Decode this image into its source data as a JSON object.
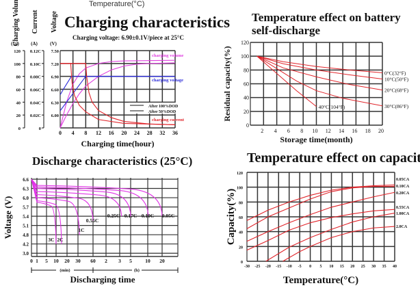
{
  "header": {
    "top_label": "Temperature(°C)"
  },
  "colors": {
    "grid": "#111111",
    "red": "#e0242a",
    "magenta": "#e040e0",
    "blue": "#2a2ad8",
    "discharge": "#e033e6"
  },
  "chart_data": [
    {
      "type": "line",
      "title": "Charging characteristics",
      "subtitle": "Charging voltage: 6.90±0.1V/piece at 25°C",
      "xlabel": "Charging time(hour)",
      "xticks": [
        0,
        4,
        8,
        12,
        16,
        20,
        24,
        28,
        32,
        36
      ],
      "xlim": [
        0,
        36
      ],
      "grid": true,
      "axes": [
        {
          "label": "Charging Volume",
          "unit": "(%)",
          "ticks": [
            "120",
            "100",
            "80",
            "60",
            "40",
            "20",
            "0"
          ]
        },
        {
          "label": "Current",
          "unit": "(A)",
          "ticks": [
            "0.12C",
            "0.10C",
            "0.08C",
            "0.06C",
            "0.04C",
            "0.02C",
            "0"
          ]
        },
        {
          "label": "Voltage",
          "unit": "(V)",
          "ticks": [
            "7.50",
            "7.20",
            "6.90",
            "6.60",
            "6.30",
            "6.00",
            ""
          ]
        }
      ],
      "legend": [
        "After 100%DOD",
        "After 50%DOD"
      ],
      "series_labels": {
        "volume": "charging volume",
        "voltage": "charging voltage",
        "current": "charging current"
      },
      "series": [
        {
          "kind": "volume",
          "dod": "100%",
          "unit": "%",
          "points": [
            [
              0,
              0
            ],
            [
              2,
              20
            ],
            [
              4,
              38
            ],
            [
              6,
              53
            ],
            [
              8,
              65
            ],
            [
              12,
              80
            ],
            [
              16,
              90
            ],
            [
              20,
              96
            ],
            [
              24,
              99
            ],
            [
              28,
              100
            ],
            [
              36,
              101
            ]
          ]
        },
        {
          "kind": "volume",
          "dod": "50%",
          "unit": "%",
          "points": [
            [
              0,
              0
            ],
            [
              2,
              40
            ],
            [
              4,
              68
            ],
            [
              6,
              84
            ],
            [
              8,
              93
            ],
            [
              12,
              100
            ],
            [
              16,
              103
            ],
            [
              20,
              104
            ],
            [
              36,
              105
            ]
          ]
        },
        {
          "kind": "voltage",
          "dod": "100%",
          "unit": "V",
          "points": [
            [
              0,
              6.1
            ],
            [
              2,
              6.3
            ],
            [
              4,
              6.5
            ],
            [
              6,
              6.7
            ],
            [
              8,
              6.9
            ],
            [
              36,
              6.9
            ]
          ]
        },
        {
          "kind": "voltage",
          "dod": "50%",
          "unit": "V",
          "points": [
            [
              0,
              6.47
            ],
            [
              1,
              6.6
            ],
            [
              2,
              6.72
            ],
            [
              3.5,
              6.9
            ],
            [
              36,
              6.9
            ]
          ]
        },
        {
          "kind": "current",
          "dod": "100%",
          "unit": "C",
          "points": [
            [
              0,
              0.1
            ],
            [
              8,
              0.1
            ],
            [
              8.3,
              0.08
            ],
            [
              9,
              0.055
            ],
            [
              10,
              0.04
            ],
            [
              12,
              0.027
            ],
            [
              16,
              0.016
            ],
            [
              20,
              0.01
            ],
            [
              28,
              0.006
            ],
            [
              36,
              0.005
            ]
          ]
        },
        {
          "kind": "current",
          "dod": "50%",
          "unit": "C",
          "points": [
            [
              0,
              0.1
            ],
            [
              3.3,
              0.1
            ],
            [
              3.7,
              0.07
            ],
            [
              4.5,
              0.05
            ],
            [
              6,
              0.035
            ],
            [
              8,
              0.025
            ],
            [
              12,
              0.013
            ],
            [
              20,
              0.007
            ],
            [
              36,
              0.005
            ]
          ]
        }
      ]
    },
    {
      "type": "line",
      "title": "Temperature effect on battery self-discharge",
      "xlabel": "Storage time(month)",
      "ylabel": "Residual capacity(%)",
      "xlim": [
        0,
        20
      ],
      "ylim": [
        0,
        120
      ],
      "xticks": [
        2,
        4,
        6,
        8,
        10,
        12,
        14,
        16,
        18,
        20
      ],
      "yticks": [
        0,
        20,
        40,
        60,
        80,
        100,
        120
      ],
      "grid": true,
      "series": [
        {
          "name": "0°C(32°F)",
          "points": [
            [
              1,
              100
            ],
            [
              5,
              92
            ],
            [
              10,
              85
            ],
            [
              15,
              80
            ],
            [
              20,
              76
            ]
          ]
        },
        {
          "name": "10°C(50°F)",
          "points": [
            [
              1,
              100
            ],
            [
              5,
              89
            ],
            [
              10,
              80
            ],
            [
              15,
              73
            ],
            [
              20,
              67
            ]
          ]
        },
        {
          "name": "20°C(68°F)",
          "points": [
            [
              1,
              100
            ],
            [
              5,
              83
            ],
            [
              10,
              70
            ],
            [
              15,
              59
            ],
            [
              20,
              51
            ]
          ]
        },
        {
          "name": "30°C(86°F)",
          "points": [
            [
              1,
              100
            ],
            [
              4,
              82
            ],
            [
              7,
              64
            ],
            [
              10,
              50
            ],
            [
              14,
              39
            ],
            [
              20,
              28
            ]
          ]
        },
        {
          "name": "40°C(104°F)",
          "points": [
            [
              1,
              100
            ],
            [
              4,
              75
            ],
            [
              7,
              50
            ],
            [
              10,
              27
            ]
          ]
        }
      ]
    },
    {
      "type": "line",
      "title": "Discharge characteristics (25°C)",
      "xlabel": "Discharging time",
      "ylabel": "Voltage (V)",
      "yticks": [
        "6.6",
        "6.3",
        "6.0",
        "5.7",
        "5.4",
        "5.1",
        "4.8",
        "4.2",
        "3.0"
      ],
      "xticks": [
        "0",
        "1",
        "5",
        "10",
        "20",
        "30",
        "60",
        "2",
        "3",
        "5",
        "10",
        "20"
      ],
      "xtick_minutes": [
        0,
        1,
        5,
        10,
        20,
        30,
        60,
        120,
        180,
        300,
        600,
        1200
      ],
      "x_units": [
        "(min)",
        "(h)"
      ],
      "grid": true,
      "series": [
        {
          "name": "3C",
          "start_voltage": 5.85,
          "end_minutes": 10,
          "end_voltage": 4.2
        },
        {
          "name": "2C",
          "start_voltage": 5.9,
          "end_minutes": 15,
          "end_voltage": 4.2
        },
        {
          "name": "1C",
          "start_voltage": 6.0,
          "end_minutes": 33,
          "end_voltage": 4.8
        },
        {
          "name": "0.55C",
          "start_voltage": 6.1,
          "end_minutes": 60,
          "end_voltage": 5.25
        },
        {
          "name": "0.25C",
          "start_voltage": 6.2,
          "end_minutes": 200,
          "end_voltage": 5.4
        },
        {
          "name": "0.17C",
          "start_voltage": 6.3,
          "end_minutes": 300,
          "end_voltage": 5.4
        },
        {
          "name": "0.10C",
          "start_voltage": 6.35,
          "end_minutes": 620,
          "end_voltage": 5.4
        },
        {
          "name": "0.05C",
          "start_voltage": 6.4,
          "end_minutes": 1200,
          "end_voltage": 5.4
        }
      ]
    },
    {
      "type": "line",
      "title": "Temperature effect on capacity",
      "xlabel": "Temperature(°C)",
      "ylabel": "Capacity(%)",
      "xlim": [
        -30,
        40
      ],
      "ylim": [
        0,
        120
      ],
      "xticks": [
        -30,
        -25,
        -20,
        -15,
        -10,
        -5,
        0,
        5,
        10,
        15,
        20,
        25,
        30,
        35,
        40
      ],
      "yticks": [
        0,
        20,
        40,
        60,
        80,
        100,
        120
      ],
      "grid": true,
      "series": [
        {
          "name": "0.05CA",
          "points": [
            [
              -30,
              55
            ],
            [
              -20,
              69
            ],
            [
              -10,
              80
            ],
            [
              0,
              89
            ],
            [
              10,
              96
            ],
            [
              20,
              100
            ],
            [
              30,
              102
            ],
            [
              40,
              103
            ]
          ]
        },
        {
          "name": "0.10CA",
          "points": [
            [
              -30,
              44
            ],
            [
              -20,
              60
            ],
            [
              -10,
              72
            ],
            [
              0,
              84
            ],
            [
              10,
              94
            ],
            [
              20,
              99
            ],
            [
              30,
              101
            ],
            [
              40,
              101
            ]
          ]
        },
        {
          "name": "0.20CA",
          "points": [
            [
              -30,
              27
            ],
            [
              -20,
              40
            ],
            [
              -10,
              52
            ],
            [
              0,
              63
            ],
            [
              10,
              73
            ],
            [
              20,
              80
            ],
            [
              30,
              87
            ],
            [
              40,
              93
            ]
          ]
        },
        {
          "name": "0.55CA",
          "points": [
            [
              -30,
              15
            ],
            [
              -20,
              28
            ],
            [
              -10,
              42
            ],
            [
              0,
              52
            ],
            [
              10,
              59
            ],
            [
              20,
              64
            ],
            [
              30,
              68
            ],
            [
              40,
              70
            ]
          ]
        },
        {
          "name": "1.00CA",
          "points": [
            [
              -21,
              0
            ],
            [
              -10,
              19
            ],
            [
              0,
              32
            ],
            [
              10,
              43
            ],
            [
              20,
              53
            ],
            [
              30,
              60
            ],
            [
              40,
              65
            ]
          ]
        },
        {
          "name": "2.0CA",
          "points": [
            [
              -13,
              0
            ],
            [
              -5,
              13
            ],
            [
              0,
              20
            ],
            [
              10,
              32
            ],
            [
              20,
              40
            ],
            [
              30,
              45
            ],
            [
              40,
              47
            ]
          ]
        }
      ]
    }
  ]
}
